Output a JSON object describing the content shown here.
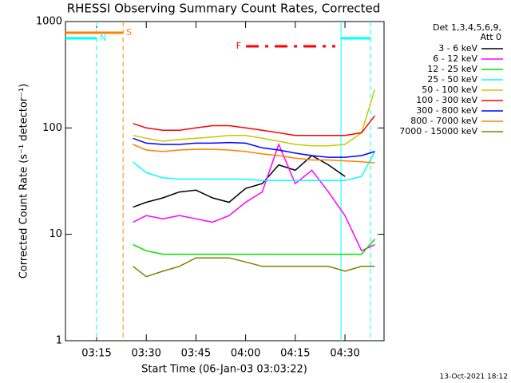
{
  "chart_data": {
    "type": "line",
    "title": "RHESSI Observing Summary Count Rates, Corrected",
    "x_label": "Start Time (06-Jan-03 03:03:22)",
    "y_label": "Corrected Count Rate (s⁻¹ detector⁻¹)",
    "footer": "13-Oct-2021 18:12",
    "legend_header": [
      "Det 1,3,4,5,6,9,",
      "Att 0"
    ],
    "log_y": true,
    "xlim": [
      5.6,
      101.8
    ],
    "xticks": [
      {
        "value": 15,
        "label": "03:15"
      },
      {
        "value": 30,
        "label": "03:30"
      },
      {
        "value": 45,
        "label": "03:45"
      },
      {
        "value": 60,
        "label": "04:00"
      },
      {
        "value": 75,
        "label": "04:15"
      },
      {
        "value": 90,
        "label": "04:30"
      }
    ],
    "ylim": [
      1,
      1000
    ],
    "yticks": [
      1,
      10,
      100,
      1000
    ],
    "x": [
      26,
      30,
      35,
      40,
      45,
      50,
      55,
      60,
      65,
      70,
      75,
      80,
      85,
      90,
      95,
      99
    ],
    "series": [
      {
        "name": "3 - 6 keV",
        "color": "#000000",
        "values": [
          18,
          20,
          22,
          25,
          26,
          22,
          20,
          27,
          30,
          45,
          40,
          55,
          45,
          35,
          null,
          null
        ]
      },
      {
        "name": "6 - 12 keV",
        "color": "#ff00ff",
        "values": [
          13,
          15,
          14,
          15,
          14,
          13,
          15,
          20,
          25,
          70,
          30,
          40,
          25,
          15,
          7,
          8
        ]
      },
      {
        "name": "12 - 25 keV",
        "color": "#00e000",
        "values": [
          8,
          7,
          6.5,
          6.5,
          6.5,
          6.5,
          6.5,
          6.5,
          6.5,
          6.5,
          6.5,
          6.5,
          6.5,
          6.5,
          6.5,
          9
        ]
      },
      {
        "name": "25 - 50 keV",
        "color": "#00ffff",
        "values": [
          48,
          38,
          34,
          33,
          33,
          33,
          33,
          33,
          32,
          32,
          32,
          32,
          32,
          32,
          35,
          60
        ]
      },
      {
        "name": "50 - 100 keV",
        "color": "#c8c800",
        "values": [
          85,
          80,
          75,
          78,
          80,
          82,
          85,
          85,
          80,
          75,
          70,
          68,
          68,
          70,
          90,
          230
        ]
      },
      {
        "name": "100 - 300 keV",
        "color": "#ff0000",
        "values": [
          110,
          100,
          95,
          95,
          100,
          105,
          105,
          100,
          95,
          90,
          85,
          85,
          85,
          85,
          90,
          130
        ]
      },
      {
        "name": "300 - 800 keV",
        "color": "#0000ff",
        "values": [
          80,
          72,
          70,
          70,
          72,
          72,
          73,
          72,
          65,
          62,
          58,
          55,
          53,
          53,
          55,
          60
        ]
      },
      {
        "name": "800 - 7000 keV",
        "color": "#ff8000",
        "values": [
          70,
          62,
          60,
          62,
          63,
          63,
          62,
          60,
          57,
          55,
          52,
          50,
          50,
          49,
          48,
          47
        ]
      },
      {
        "name": "7000 - 15000 keV",
        "color": "#808000",
        "values": [
          5,
          4,
          4.5,
          5,
          6,
          6,
          6,
          5.5,
          5,
          5,
          5,
          5,
          5,
          4.5,
          5,
          5
        ]
      }
    ],
    "flags": [
      {
        "label": "N",
        "color": "#00ffff",
        "ranges": [
          [
            5.6,
            15
          ],
          [
            88.8,
            97.7
          ]
        ]
      },
      {
        "label": "S",
        "color": "#ff8000",
        "ranges": [
          [
            5.6,
            23
          ]
        ]
      },
      {
        "label": "F",
        "color": "#ff0000",
        "ranges": [
          [
            60.1,
            87.1
          ]
        ]
      }
    ],
    "vlines": [
      {
        "x": 15,
        "color": "#00ffff"
      },
      {
        "x": 23,
        "color": "#ff8000"
      },
      {
        "x": 88.8,
        "color": "#00ffff"
      },
      {
        "x": 97.7,
        "color": "#00ffff"
      }
    ]
  }
}
